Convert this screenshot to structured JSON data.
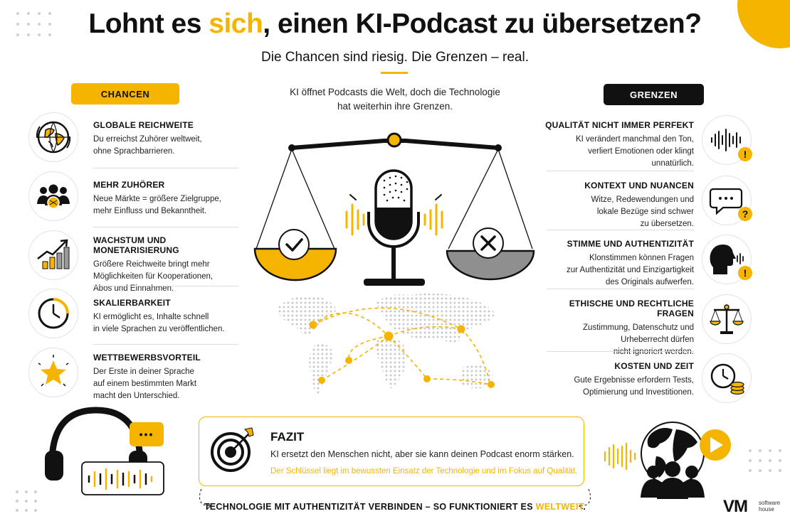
{
  "header": {
    "title_part1": "Lohnt es ",
    "title_accent": "sich",
    "title_part2": ", einen KI-Podcast zu übersetzen?",
    "subtitle": "Die Chancen sind riesig. Die Grenzen – real."
  },
  "intro": {
    "line1": "KI öffnet Podcasts die Welt, doch die Technologie",
    "line2": "hat weiterhin ihre Grenzen."
  },
  "chancen": {
    "label": "CHANCEN",
    "items": [
      {
        "title": "GLOBALE REICHWEITE",
        "line1": "Du erreichst Zuhörer weltweit,",
        "line2": "ohne Sprachbarrieren.",
        "line3": "",
        "icon": "globe-icon"
      },
      {
        "title": "MEHR ZUHÖRER",
        "line1": "Neue Märkte = größere Zielgruppe,",
        "line2": "mehr Einfluss und Bekanntheit.",
        "line3": "",
        "icon": "audience-icon"
      },
      {
        "title": "WACHSTUM UND MONETARISIERUNG",
        "line1": "Größere Reichweite bringt mehr",
        "line2": "Möglichkeiten für Kooperationen,",
        "line3": "Abos und Einnahmen.",
        "icon": "growth-chart-icon"
      },
      {
        "title": "SKALIERBARKEIT",
        "line1": "KI ermöglicht es, Inhalte schnell",
        "line2": "in viele Sprachen zu veröffentlichen.",
        "line3": "",
        "icon": "clock-icon"
      },
      {
        "title": "WETTBEWERBSVORTEIL",
        "line1": "Der Erste in deiner Sprache",
        "line2": "auf einem bestimmten Markt",
        "line3": "macht den Unterschied.",
        "icon": "star-icon"
      }
    ]
  },
  "grenzen": {
    "label": "GRENZEN",
    "items": [
      {
        "title": "QUALITÄT NICHT IMMER PERFEKT",
        "line1": "KI verändert manchmal den Ton,",
        "line2": "verliert Emotionen oder klingt",
        "line3": "unnatürlich.",
        "icon": "waveform-icon",
        "badge": "!"
      },
      {
        "title": "KONTEXT UND NUANCEN",
        "line1": "Witze, Redewendungen und",
        "line2": "lokale Bezüge sind schwer",
        "line3": "zu übersetzen.",
        "icon": "chat-bubble-icon",
        "badge": "?"
      },
      {
        "title": "STIMME UND AUTHENTIZITÄT",
        "line1": "Klonstimmen können Fragen",
        "line2": "zur Authentizität und Einzigartigkeit",
        "line3": "des Originals aufwerfen.",
        "icon": "voice-head-icon",
        "badge": "!"
      },
      {
        "title": "ETHISCHE UND RECHTLICHE FRAGEN",
        "line1": "Zustimmung, Datenschutz und",
        "line2": "Urheberrecht dürfen",
        "line3": "nicht ignoriert werden.",
        "icon": "scales-icon",
        "badge": ""
      },
      {
        "title": "KOSTEN UND ZEIT",
        "line1": "Gute Ergebnisse erfordern Tests,",
        "line2": "Optimierung und Investitionen.",
        "line3": "",
        "icon": "clock-coins-icon",
        "badge": ""
      }
    ]
  },
  "fazit": {
    "title": "FAZIT",
    "text": "KI ersetzt den Menschen nicht, aber sie kann deinen Podcast enorm stärken.",
    "key": "Der Schlüssel liegt im bewussten Einsatz der Technologie und im Fokus auf Qualität."
  },
  "footer": {
    "line_part1": "TECHNOLOGIE MIT AUTHENTIZITÄT VERBINDEN – SO FUNKTIONIERT ES ",
    "line_accent": "WELTWEIT",
    "line_end": ".",
    "logo": "VM",
    "logo_sub1": "software",
    "logo_sub2": "house"
  },
  "bubble": {
    "dots": "•••"
  },
  "colors": {
    "accent": "#f5b400",
    "dark": "#111111",
    "gray": "#8f8f8f"
  }
}
